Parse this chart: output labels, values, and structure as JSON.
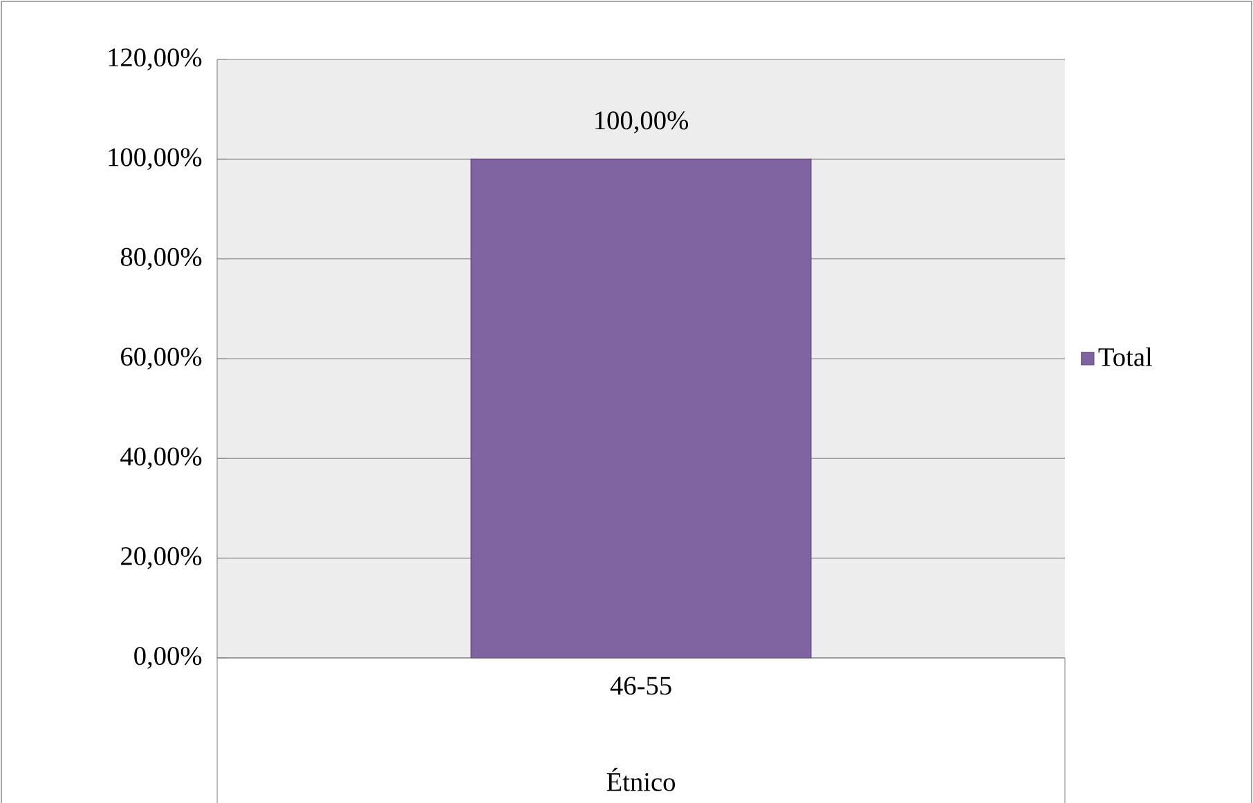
{
  "chart_data": {
    "type": "bar",
    "categories": [
      "46-55"
    ],
    "xlabel": "Étnico",
    "series": [
      {
        "name": "Total",
        "color": "#8064a2",
        "values": [
          100
        ],
        "value_labels": [
          "100,00%"
        ]
      }
    ],
    "ylim": [
      0,
      120
    ],
    "yticks": [
      {
        "value": 0,
        "label": "0,00%"
      },
      {
        "value": 20,
        "label": "20,00%"
      },
      {
        "value": 40,
        "label": "40,00%"
      },
      {
        "value": 60,
        "label": "60,00%"
      },
      {
        "value": 80,
        "label": "80,00%"
      },
      {
        "value": 100,
        "label": "100,00%"
      },
      {
        "value": 120,
        "label": "120,00%"
      }
    ],
    "grid": "y",
    "legend": "right"
  }
}
